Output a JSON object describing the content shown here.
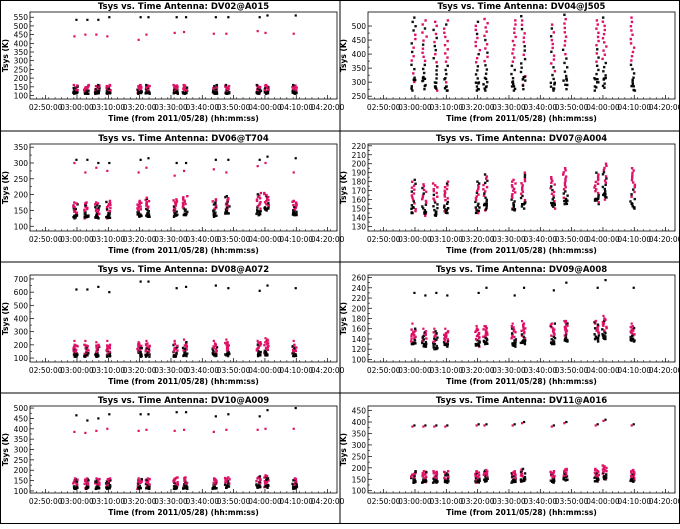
{
  "chart_data": [
    {
      "type": "scatter",
      "title": "Tsys vs. Time Antenna: DV02@A015",
      "xlabel": "Time (from 2011/05/28) (hh:mm:ss)",
      "ylabel": "Tsys (K)",
      "xticks": [
        "02:50:00",
        "03:00:00",
        "03:10:00",
        "03:20:00",
        "03:30:00",
        "03:40:00",
        "03:50:00",
        "04:00:00",
        "04:10:00",
        "04:20:00"
      ],
      "ylim": [
        80,
        580
      ],
      "yticks": [
        "100",
        "150",
        "200",
        "250",
        "300",
        "350",
        "400",
        "450",
        "500",
        "550"
      ],
      "scans": [
        "02:59:30",
        "03:03:00",
        "03:06:30",
        "03:10:00",
        "03:20:00",
        "03:22:30",
        "03:31:30",
        "03:34:30",
        "03:44:00",
        "03:48:00",
        "03:58:00",
        "04:00:30",
        "04:09:30"
      ],
      "low_band": [
        [
          110,
          160
        ],
        [
          110,
          160
        ],
        [
          110,
          160
        ],
        [
          110,
          160
        ],
        [
          110,
          160
        ],
        [
          110,
          160
        ],
        [
          110,
          160
        ],
        [
          110,
          160
        ],
        [
          110,
          160
        ],
        [
          110,
          160
        ],
        [
          110,
          160
        ],
        [
          110,
          160
        ],
        [
          110,
          160
        ]
      ],
      "outliers_black": [
        535,
        535,
        535,
        550,
        550,
        550,
        550,
        550,
        550,
        550,
        550,
        560,
        560
      ],
      "outliers_red": [
        440,
        450,
        450,
        440,
        420,
        450,
        460,
        465,
        455,
        455,
        470,
        460,
        455
      ]
    },
    {
      "type": "scatter",
      "title": "Tsys vs. Time Antenna: DV04@J505",
      "xlabel": "Time (from 2011/05/28) (hh:mm:ss)",
      "ylabel": "Tsys (K)",
      "xticks": [
        "02:50:00",
        "03:00:00",
        "03:10:00",
        "03:20:00",
        "03:30:00",
        "03:40:00",
        "03:50:00",
        "04:00:00",
        "04:10:00",
        "04:20:00"
      ],
      "ylim": [
        240,
        550
      ],
      "yticks": [
        "250",
        "300",
        "350",
        "400",
        "450",
        "500"
      ],
      "scans": [
        "02:59:30",
        "03:03:00",
        "03:06:30",
        "03:10:00",
        "03:20:00",
        "03:22:30",
        "03:31:30",
        "03:34:30",
        "03:44:00",
        "03:48:00",
        "03:58:00",
        "04:00:30",
        "04:09:30"
      ],
      "bands": [
        [
          270,
          530
        ],
        [
          275,
          520
        ],
        [
          270,
          515
        ],
        [
          270,
          520
        ],
        [
          270,
          515
        ],
        [
          270,
          525
        ],
        [
          270,
          520
        ],
        [
          275,
          535
        ],
        [
          270,
          505
        ],
        [
          275,
          540
        ],
        [
          270,
          520
        ],
        [
          280,
          530
        ],
        [
          270,
          530
        ]
      ]
    },
    {
      "type": "scatter",
      "title": "Tsys vs. Time Antenna: DV06@T704",
      "xlabel": "Time (from 2011/05/28) (hh:mm:ss)",
      "ylabel": "Tsys (K)",
      "xticks": [
        "02:50:00",
        "03:00:00",
        "03:10:00",
        "03:20:00",
        "03:30:00",
        "03:40:00",
        "03:50:00",
        "04:00:00",
        "04:10:00",
        "04:20:00"
      ],
      "ylim": [
        85,
        360
      ],
      "yticks": [
        "100",
        "150",
        "200",
        "250",
        "300",
        "350"
      ],
      "scans": [
        "02:59:30",
        "03:03:00",
        "03:06:30",
        "03:10:00",
        "03:20:00",
        "03:22:30",
        "03:31:30",
        "03:34:30",
        "03:44:00",
        "03:48:00",
        "03:58:00",
        "04:00:30",
        "04:09:30"
      ],
      "low_band": [
        [
          125,
          175
        ],
        [
          125,
          175
        ],
        [
          125,
          175
        ],
        [
          125,
          180
        ],
        [
          130,
          180
        ],
        [
          130,
          190
        ],
        [
          130,
          185
        ],
        [
          135,
          195
        ],
        [
          130,
          185
        ],
        [
          140,
          195
        ],
        [
          135,
          205
        ],
        [
          150,
          205
        ],
        [
          135,
          180
        ]
      ],
      "outliers_black": [
        310,
        310,
        300,
        300,
        310,
        315,
        300,
        300,
        310,
        310,
        310,
        320,
        315
      ],
      "outliers_red": [
        300,
        270,
        285,
        275,
        270,
        285,
        260,
        275,
        280,
        270,
        290,
        300,
        270
      ]
    },
    {
      "type": "scatter",
      "title": "Tsys vs. Time Antenna: DV07@A004",
      "xlabel": "Time (from 2011/05/28) (hh:mm:ss)",
      "ylabel": "Tsys (K)",
      "xticks": [
        "02:50:00",
        "03:00:00",
        "03:10:00",
        "03:20:00",
        "03:30:00",
        "03:40:00",
        "03:50:00",
        "04:00:00",
        "04:10:00",
        "04:20:00"
      ],
      "ylim": [
        125,
        222
      ],
      "yticks": [
        "130",
        "140",
        "150",
        "160",
        "170",
        "180",
        "190",
        "200",
        "210",
        "220"
      ],
      "scans": [
        "02:59:30",
        "03:03:00",
        "03:06:30",
        "03:10:00",
        "03:20:00",
        "03:22:30",
        "03:31:30",
        "03:34:30",
        "03:44:00",
        "03:48:00",
        "03:58:00",
        "04:00:30",
        "04:09:30"
      ],
      "bands": [
        [
          145,
          182
        ],
        [
          142,
          177
        ],
        [
          142,
          178
        ],
        [
          145,
          180
        ],
        [
          145,
          180
        ],
        [
          148,
          188
        ],
        [
          148,
          182
        ],
        [
          150,
          190
        ],
        [
          150,
          185
        ],
        [
          155,
          195
        ],
        [
          155,
          190
        ],
        [
          160,
          200
        ],
        [
          150,
          195
        ]
      ]
    },
    {
      "type": "scatter",
      "title": "Tsys vs. Time Antenna: DV08@A072",
      "xlabel": "Time (from 2011/05/28) (hh:mm:ss)",
      "ylabel": "Tsys (K)",
      "xticks": [
        "02:50:00",
        "03:00:00",
        "03:10:00",
        "03:20:00",
        "03:30:00",
        "03:40:00",
        "03:50:00",
        "04:00:00",
        "04:10:00",
        "04:20:00"
      ],
      "ylim": [
        70,
        730
      ],
      "yticks": [
        "100",
        "200",
        "300",
        "400",
        "500",
        "600",
        "700"
      ],
      "scans": [
        "02:59:30",
        "03:03:00",
        "03:06:30",
        "03:10:00",
        "03:20:00",
        "03:22:30",
        "03:31:30",
        "03:34:30",
        "03:44:00",
        "03:48:00",
        "03:58:00",
        "04:00:30",
        "04:09:30"
      ],
      "low_band": [
        [
          110,
          200
        ],
        [
          110,
          200
        ],
        [
          110,
          200
        ],
        [
          110,
          200
        ],
        [
          110,
          210
        ],
        [
          110,
          210
        ],
        [
          110,
          210
        ],
        [
          115,
          220
        ],
        [
          115,
          210
        ],
        [
          115,
          220
        ],
        [
          115,
          220
        ],
        [
          120,
          240
        ],
        [
          115,
          200
        ]
      ],
      "outliers_black": [
        620,
        620,
        640,
        600,
        680,
        680,
        630,
        640,
        650,
        630,
        610,
        650,
        630
      ],
      "outliers_red": [
        230,
        230,
        220,
        230,
        220,
        230,
        230,
        240,
        230,
        240,
        230,
        250,
        230
      ]
    },
    {
      "type": "scatter",
      "title": "Tsys vs. Time Antenna: DV09@A008",
      "xlabel": "Time (from 2011/05/28) (hh:mm:ss)",
      "ylabel": "Tsys (K)",
      "xticks": [
        "02:50:00",
        "03:00:00",
        "03:10:00",
        "03:20:00",
        "03:30:00",
        "03:40:00",
        "03:50:00",
        "04:00:00",
        "04:10:00",
        "04:20:00"
      ],
      "ylim": [
        95,
        265
      ],
      "yticks": [
        "100",
        "120",
        "140",
        "160",
        "180",
        "200",
        "220",
        "240",
        "260"
      ],
      "scans": [
        "02:59:30",
        "03:03:00",
        "03:06:30",
        "03:10:00",
        "03:20:00",
        "03:22:30",
        "03:31:30",
        "03:34:30",
        "03:44:00",
        "03:48:00",
        "03:58:00",
        "04:00:30",
        "04:09:30"
      ],
      "low_band": [
        [
          130,
          160
        ],
        [
          125,
          155
        ],
        [
          120,
          155
        ],
        [
          125,
          155
        ],
        [
          125,
          160
        ],
        [
          130,
          165
        ],
        [
          125,
          165
        ],
        [
          130,
          170
        ],
        [
          130,
          170
        ],
        [
          135,
          175
        ],
        [
          135,
          175
        ],
        [
          140,
          180
        ],
        [
          135,
          165
        ]
      ],
      "outliers_black": [
        230,
        225,
        230,
        225,
        230,
        240,
        225,
        240,
        235,
        250,
        240,
        255,
        240
      ],
      "outliers_red": [
        170,
        160,
        160,
        160,
        165,
        165,
        170,
        175,
        170,
        175,
        175,
        185,
        170
      ]
    },
    {
      "type": "scatter",
      "title": "Tsys vs. Time Antenna: DV10@A009",
      "xlabel": "Time (from 2011/05/28) (hh:mm:ss)",
      "ylabel": "Tsys (K)",
      "xticks": [
        "02:50:00",
        "03:00:00",
        "03:10:00",
        "03:20:00",
        "03:30:00",
        "03:40:00",
        "03:50:00",
        "04:00:00",
        "04:10:00",
        "04:20:00"
      ],
      "ylim": [
        90,
        510
      ],
      "yticks": [
        "100",
        "150",
        "200",
        "250",
        "300",
        "350",
        "400",
        "450",
        "500"
      ],
      "scans": [
        "02:59:30",
        "03:03:00",
        "03:06:30",
        "03:10:00",
        "03:20:00",
        "03:22:30",
        "03:31:30",
        "03:34:30",
        "03:44:00",
        "03:48:00",
        "03:58:00",
        "04:00:30",
        "04:09:30"
      ],
      "low_band": [
        [
          110,
          160
        ],
        [
          110,
          160
        ],
        [
          110,
          160
        ],
        [
          110,
          160
        ],
        [
          110,
          160
        ],
        [
          110,
          160
        ],
        [
          110,
          165
        ],
        [
          110,
          165
        ],
        [
          110,
          160
        ],
        [
          115,
          165
        ],
        [
          115,
          170
        ],
        [
          115,
          175
        ],
        [
          110,
          160
        ]
      ],
      "outliers_black": [
        465,
        440,
        450,
        470,
        470,
        470,
        480,
        480,
        460,
        470,
        460,
        490,
        500
      ],
      "outliers_red": [
        385,
        380,
        390,
        400,
        390,
        395,
        390,
        395,
        385,
        395,
        395,
        400,
        400
      ]
    },
    {
      "type": "scatter",
      "title": "Tsys vs. Time Antenna: DV11@A016",
      "xlabel": "Time (from 2011/05/28) (hh:mm:ss)",
      "ylabel": "Tsys (K)",
      "xticks": [
        "02:50:00",
        "03:00:00",
        "03:10:00",
        "03:20:00",
        "03:30:00",
        "03:40:00",
        "03:50:00",
        "04:00:00",
        "04:10:00",
        "04:20:00"
      ],
      "ylim": [
        90,
        470
      ],
      "yticks": [
        "100",
        "150",
        "200",
        "250",
        "300",
        "350",
        "400",
        "450"
      ],
      "scans": [
        "02:59:30",
        "03:03:00",
        "03:06:30",
        "03:10:00",
        "03:20:00",
        "03:22:30",
        "03:31:30",
        "03:34:30",
        "03:44:00",
        "03:48:00",
        "03:58:00",
        "04:00:30",
        "04:09:30"
      ],
      "low_band": [
        [
          135,
          185
        ],
        [
          135,
          185
        ],
        [
          135,
          185
        ],
        [
          135,
          185
        ],
        [
          135,
          185
        ],
        [
          140,
          190
        ],
        [
          135,
          185
        ],
        [
          140,
          195
        ],
        [
          135,
          185
        ],
        [
          145,
          195
        ],
        [
          140,
          195
        ],
        [
          150,
          210
        ],
        [
          140,
          190
        ]
      ],
      "outliers_black": [
        385,
        385,
        385,
        385,
        390,
        390,
        390,
        400,
        385,
        400,
        390,
        410,
        390
      ],
      "outliers_red": [
        380,
        380,
        380,
        380,
        385,
        385,
        385,
        395,
        380,
        395,
        385,
        405,
        385
      ]
    }
  ]
}
